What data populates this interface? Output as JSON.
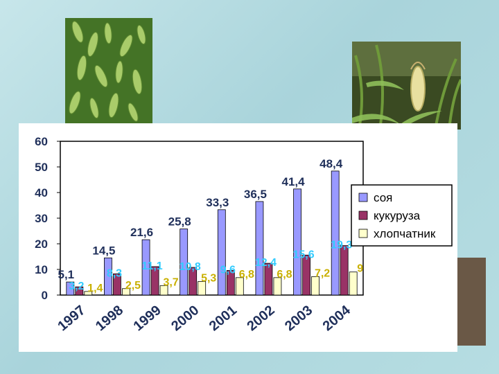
{
  "slide": {
    "photos": [
      {
        "name": "soybean-photo",
        "icon": "soybean-pods-image"
      },
      {
        "name": "corn-photo",
        "icon": "corn-plant-image"
      },
      {
        "name": "cotton-photo",
        "icon": "cotton-boll-image"
      }
    ]
  },
  "chart_data": {
    "type": "bar",
    "title": "",
    "xlabel": "",
    "ylabel": "",
    "ylim": [
      0,
      60
    ],
    "yticks": [
      "0",
      "10",
      "20",
      "30",
      "40",
      "50",
      "60"
    ],
    "grid": false,
    "legend_position": "right",
    "categories": [
      "1997",
      "1998",
      "1999",
      "2000",
      "2001",
      "2002",
      "2003",
      "2004"
    ],
    "series": [
      {
        "name": "соя",
        "color": "#9999ff",
        "label_color": "#1f2f5a",
        "values": [
          5.1,
          14.5,
          21.6,
          25.8,
          33.3,
          36.5,
          41.4,
          48.4
        ],
        "labels": [
          "5,1",
          "14,5",
          "21,6",
          "25,8",
          "33,3",
          "36,5",
          "41,4",
          "48,4"
        ]
      },
      {
        "name": "кукуруза",
        "color": "#993366",
        "label_color": "#33ccff",
        "values": [
          3.2,
          8.3,
          11.1,
          10.8,
          9.6,
          12.4,
          15.6,
          19.3
        ],
        "labels": [
          "3,2",
          "8,3",
          "11,1",
          "10,8",
          "9,6",
          "12,4",
          "15,6",
          "19,3"
        ]
      },
      {
        "name": "хлопчатник",
        "color": "#ffffcc",
        "label_color": "#c9b000",
        "values": [
          1.4,
          2.5,
          3.7,
          5.3,
          6.8,
          6.8,
          7.2,
          9
        ],
        "labels": [
          "1,4",
          "2,5",
          "3,7",
          "5,3",
          "6,8",
          "6,8",
          "7,2",
          "9"
        ]
      }
    ]
  }
}
